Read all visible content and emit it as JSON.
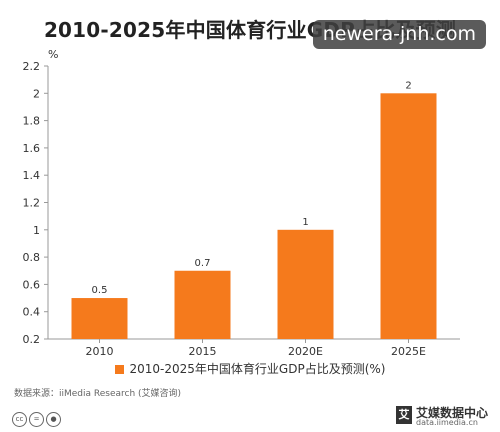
{
  "watermark": "newera-jnh.com",
  "source": "数据来源：iiMedia Research (艾媒咨询)",
  "logo": {
    "name": "艾媒数据中心",
    "url": "data.iimedia.cn",
    "mark": "艾"
  },
  "cc_icons": [
    "cc-icon",
    "equal-icon",
    "person-icon"
  ],
  "colors": {
    "bar": "#f57a1c",
    "axis": "#999999"
  },
  "chart_data": {
    "type": "bar",
    "title": "2010-2025年中国体育行业GDP占比及预测",
    "categories": [
      "2010",
      "2015",
      "2020E",
      "2025E"
    ],
    "series": [
      {
        "name": "2010-2025年中国体育行业GDP占比及预测(%)",
        "values": [
          0.5,
          0.7,
          1,
          2
        ],
        "labels": [
          "0.5",
          "0.7",
          "1",
          "2"
        ]
      }
    ],
    "ylabel": "%",
    "ylim": [
      0.2,
      2.2
    ],
    "yticks": [
      "0.2",
      "0.4",
      "0.6",
      "0.8",
      "1",
      "1.2",
      "1.4",
      "1.6",
      "1.8",
      "2",
      "2.2"
    ],
    "legend": "bottom",
    "grid": false
  }
}
